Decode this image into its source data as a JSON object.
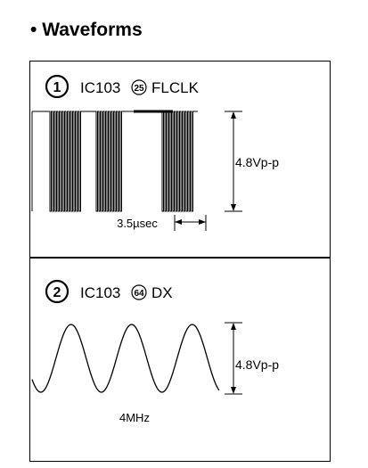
{
  "title": "Waveforms",
  "bullet": "•",
  "panels": [
    {
      "number": "1",
      "ic": "IC103",
      "pin": "25",
      "signal": "FLCLK",
      "amplitude": "4.8Vp-p",
      "period": "3.5µsec"
    },
    {
      "number": "2",
      "ic": "IC103",
      "pin": "64",
      "signal": "DX",
      "amplitude": "4.8Vp-p",
      "frequency": "4MHz"
    }
  ]
}
